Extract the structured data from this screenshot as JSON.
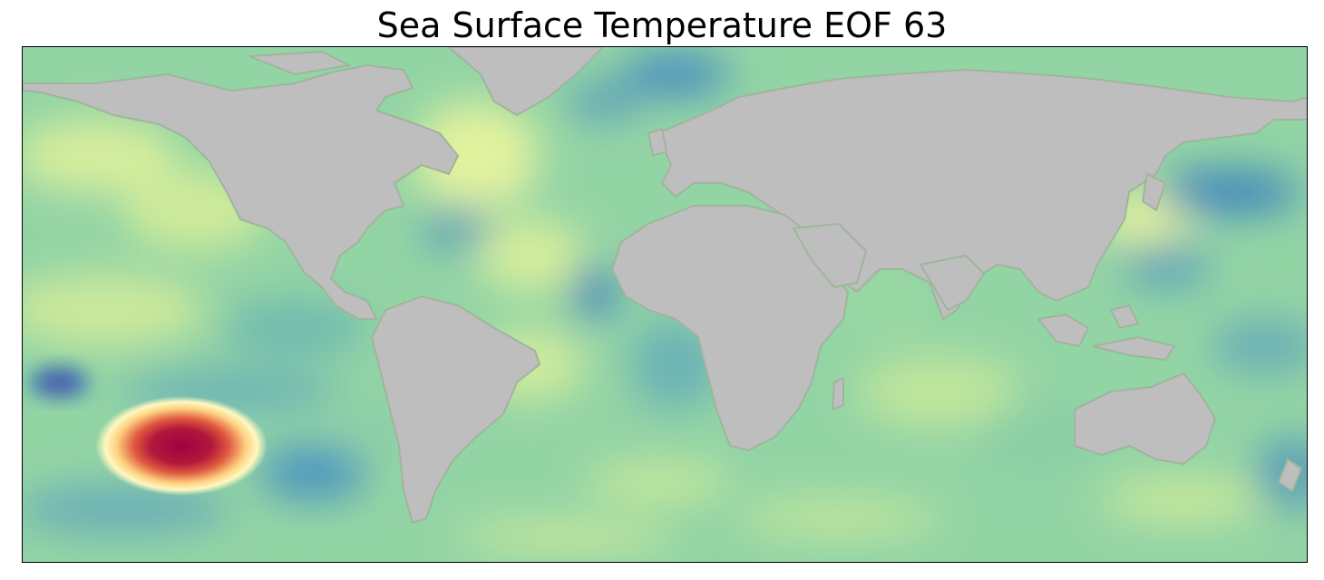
{
  "title": "Sea Surface Temperature EOF 63",
  "colors": {
    "ocean_base": "#8fd3a4",
    "land": "#bebebe",
    "positive_high": "#9e0142",
    "positive_mid": "#f46d43",
    "neutral_light": "#e6f598",
    "negative_mid": "#3288bd",
    "negative_high": "#5e4fa2"
  },
  "colormap": "Spectral_r",
  "projection": "PlateCarree"
}
